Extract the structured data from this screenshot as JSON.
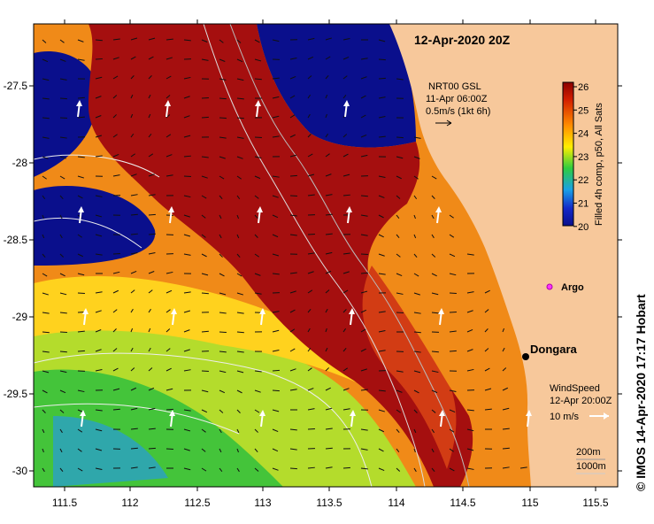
{
  "title": "12-Apr-2020 20Z",
  "credit": "© IMOS 14-Apr-2020 17:17 Hobart",
  "current_legend": {
    "line1": "NRT00 GSL",
    "line2": "11-Apr 06:00Z",
    "line3": "0.5m/s (1kt 6h)"
  },
  "colorbar": {
    "label": "Filled 4h comp, p50, All Sats",
    "ticks": [
      "26",
      "25",
      "24",
      "23",
      "22",
      "21",
      "20"
    ]
  },
  "places": {
    "argo": "Argo",
    "dongara": "Dongara"
  },
  "wind_legend": {
    "line1": "WindSpeed",
    "line2": "12-Apr 20:00Z",
    "line3": "10 m/s"
  },
  "bathy_legend": {
    "line1": "200m",
    "line2": "1000m"
  },
  "x_ticks": [
    "111.5",
    "112",
    "112.5",
    "113",
    "113.5",
    "114",
    "114.5",
    "115",
    "115.5"
  ],
  "y_ticks": [
    "-27.5",
    "-28",
    "-28.5",
    "-29",
    "-29.5",
    "-30"
  ],
  "colors": {
    "land": "#f7c89b",
    "hot": "#a50f0f",
    "cold": "#0a0f8c"
  }
}
